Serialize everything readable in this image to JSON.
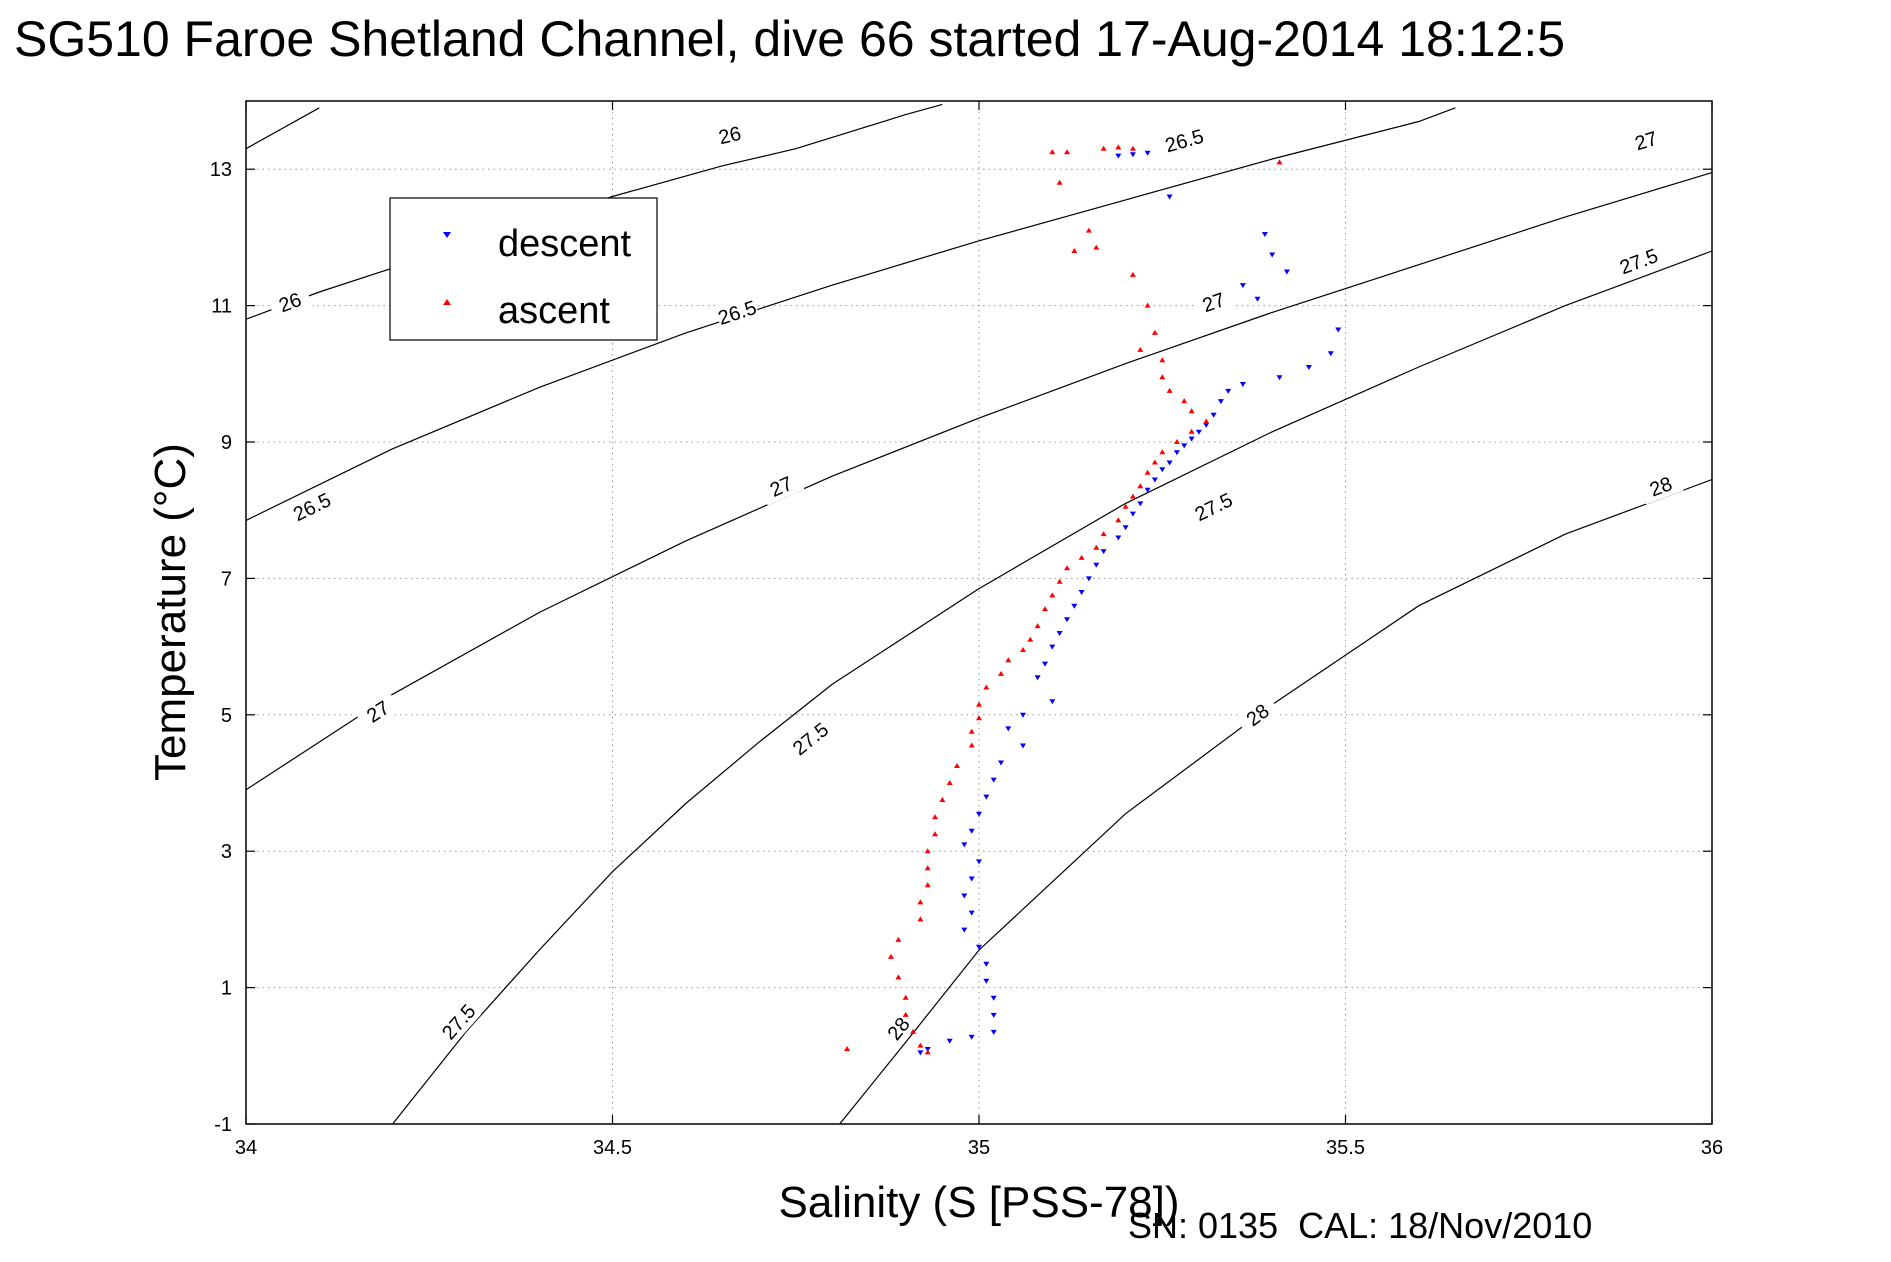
{
  "chart_data": {
    "type": "scatter",
    "title": "SG510 Faroe Shetland Channel, dive 66 started 17-Aug-2014 18:12:5",
    "xlabel": "Salinity (S [PSS-78])",
    "ylabel": "Temperature (°C)",
    "xlim": [
      34,
      36
    ],
    "ylim": [
      -1,
      14
    ],
    "xticks": [
      34,
      34.5,
      35,
      35.5,
      36
    ],
    "yticks": [
      -1,
      1,
      3,
      5,
      7,
      9,
      11,
      13
    ],
    "grid": true,
    "legend_position": "upper-left",
    "colors": {
      "descent": "#0000ff",
      "ascent": "#ff0000",
      "contour": "#000000"
    },
    "contours": [
      {
        "level": "26",
        "points": [
          [
            34,
            13.3
          ],
          [
            34.1,
            13.9
          ]
        ],
        "labels": []
      },
      {
        "level": "26",
        "points": [
          [
            34,
            10.8
          ],
          [
            34.1,
            11.2
          ],
          [
            34.3,
            11.9
          ],
          [
            34.5,
            12.6
          ],
          [
            34.65,
            13.05
          ],
          [
            34.75,
            13.3
          ],
          [
            34.9,
            13.8
          ],
          [
            34.95,
            13.95
          ]
        ],
        "labels": [
          [
            34.06,
            11.05
          ],
          [
            34.66,
            13.5
          ]
        ]
      },
      {
        "level": "26.5",
        "points": [
          [
            34,
            7.85
          ],
          [
            34.2,
            8.9
          ],
          [
            34.4,
            9.8
          ],
          [
            34.6,
            10.6
          ],
          [
            34.8,
            11.3
          ],
          [
            35,
            11.95
          ],
          [
            35.2,
            12.55
          ],
          [
            35.4,
            13.15
          ],
          [
            35.6,
            13.7
          ],
          [
            35.65,
            13.9
          ]
        ],
        "labels": [
          [
            34.09,
            8.05
          ],
          [
            34.67,
            10.9
          ],
          [
            35.28,
            13.42
          ]
        ]
      },
      {
        "level": "27",
        "points": [
          [
            34,
            3.9
          ],
          [
            34.2,
            5.3
          ],
          [
            34.4,
            6.5
          ],
          [
            34.6,
            7.55
          ],
          [
            34.8,
            8.5
          ],
          [
            35,
            9.35
          ],
          [
            35.2,
            10.15
          ],
          [
            35.4,
            10.9
          ],
          [
            35.6,
            11.6
          ],
          [
            35.8,
            12.3
          ],
          [
            36,
            12.95
          ]
        ],
        "labels": [
          [
            34.18,
            5.05
          ],
          [
            34.73,
            8.35
          ],
          [
            35.32,
            11.05
          ],
          [
            35.91,
            13.42
          ]
        ]
      },
      {
        "level": "27.5",
        "points": [
          [
            34.2,
            -1
          ],
          [
            34.3,
            0.35
          ],
          [
            34.4,
            1.55
          ],
          [
            34.5,
            2.7
          ],
          [
            34.6,
            3.7
          ],
          [
            34.7,
            4.6
          ],
          [
            34.8,
            5.45
          ],
          [
            35,
            6.85
          ],
          [
            35.2,
            8.1
          ],
          [
            35.4,
            9.15
          ],
          [
            35.6,
            10.1
          ],
          [
            35.8,
            11.0
          ],
          [
            36,
            11.8
          ]
        ],
        "labels": [
          [
            34.29,
            0.5
          ],
          [
            34.77,
            4.65
          ],
          [
            35.32,
            8.05
          ],
          [
            35.9,
            11.65
          ]
        ]
      },
      {
        "level": "28",
        "points": [
          [
            34.81,
            -1
          ],
          [
            34.9,
            0.2
          ],
          [
            35,
            1.55
          ],
          [
            35.2,
            3.55
          ],
          [
            35.4,
            5.15
          ],
          [
            35.6,
            6.6
          ],
          [
            35.8,
            7.65
          ],
          [
            36,
            8.45
          ]
        ],
        "labels": [
          [
            34.89,
            0.4
          ],
          [
            35.38,
            5.0
          ],
          [
            35.93,
            8.35
          ]
        ]
      }
    ],
    "series": [
      {
        "name": "descent",
        "marker": "triangle-down",
        "points": [
          [
            35.19,
            13.2
          ],
          [
            35.21,
            13.22
          ],
          [
            35.23,
            13.24
          ],
          [
            35.26,
            12.6
          ],
          [
            35.39,
            12.05
          ],
          [
            35.4,
            11.75
          ],
          [
            35.42,
            11.5
          ],
          [
            35.36,
            11.3
          ],
          [
            35.38,
            11.1
          ],
          [
            35.49,
            10.65
          ],
          [
            35.48,
            10.3
          ],
          [
            35.45,
            10.1
          ],
          [
            35.41,
            9.95
          ],
          [
            35.36,
            9.85
          ],
          [
            35.34,
            9.75
          ],
          [
            35.33,
            9.6
          ],
          [
            35.32,
            9.4
          ],
          [
            35.31,
            9.25
          ],
          [
            35.3,
            9.15
          ],
          [
            35.29,
            9.05
          ],
          [
            35.28,
            8.95
          ],
          [
            35.27,
            8.85
          ],
          [
            35.26,
            8.7
          ],
          [
            35.25,
            8.6
          ],
          [
            35.24,
            8.45
          ],
          [
            35.23,
            8.3
          ],
          [
            35.22,
            8.1
          ],
          [
            35.21,
            7.95
          ],
          [
            35.2,
            7.75
          ],
          [
            35.19,
            7.6
          ],
          [
            35.17,
            7.4
          ],
          [
            35.16,
            7.2
          ],
          [
            35.15,
            7.0
          ],
          [
            35.14,
            6.8
          ],
          [
            35.13,
            6.6
          ],
          [
            35.12,
            6.4
          ],
          [
            35.11,
            6.2
          ],
          [
            35.1,
            6.0
          ],
          [
            35.09,
            5.75
          ],
          [
            35.08,
            5.55
          ],
          [
            35.1,
            5.2
          ],
          [
            35.06,
            5.0
          ],
          [
            35.04,
            4.8
          ],
          [
            35.06,
            4.55
          ],
          [
            35.03,
            4.3
          ],
          [
            35.02,
            4.05
          ],
          [
            35.01,
            3.8
          ],
          [
            35.0,
            3.55
          ],
          [
            34.99,
            3.3
          ],
          [
            34.98,
            3.1
          ],
          [
            35.0,
            2.85
          ],
          [
            34.99,
            2.6
          ],
          [
            34.98,
            2.35
          ],
          [
            34.99,
            2.1
          ],
          [
            34.98,
            1.85
          ],
          [
            35.0,
            1.6
          ],
          [
            35.01,
            1.35
          ],
          [
            35.01,
            1.1
          ],
          [
            35.02,
            0.85
          ],
          [
            35.02,
            0.6
          ],
          [
            35.02,
            0.35
          ],
          [
            34.99,
            0.28
          ],
          [
            34.96,
            0.22
          ],
          [
            34.93,
            0.1
          ],
          [
            34.92,
            0.05
          ]
        ]
      },
      {
        "name": "ascent",
        "marker": "triangle-up",
        "points": [
          [
            35.17,
            13.3
          ],
          [
            35.19,
            13.32
          ],
          [
            35.21,
            13.3
          ],
          [
            35.12,
            13.25
          ],
          [
            35.1,
            13.25
          ],
          [
            35.41,
            13.1
          ],
          [
            35.11,
            12.8
          ],
          [
            35.15,
            12.1
          ],
          [
            35.16,
            11.85
          ],
          [
            35.13,
            11.8
          ],
          [
            35.21,
            11.45
          ],
          [
            35.23,
            11.0
          ],
          [
            35.24,
            10.6
          ],
          [
            35.22,
            10.35
          ],
          [
            35.25,
            10.2
          ],
          [
            35.25,
            9.95
          ],
          [
            35.26,
            9.75
          ],
          [
            35.28,
            9.6
          ],
          [
            35.29,
            9.45
          ],
          [
            35.31,
            9.3
          ],
          [
            35.29,
            9.15
          ],
          [
            35.27,
            9.0
          ],
          [
            35.25,
            8.85
          ],
          [
            35.24,
            8.7
          ],
          [
            35.23,
            8.55
          ],
          [
            35.22,
            8.35
          ],
          [
            35.21,
            8.2
          ],
          [
            35.2,
            8.05
          ],
          [
            35.19,
            7.85
          ],
          [
            35.17,
            7.65
          ],
          [
            35.16,
            7.45
          ],
          [
            35.14,
            7.3
          ],
          [
            35.12,
            7.15
          ],
          [
            35.11,
            6.95
          ],
          [
            35.1,
            6.75
          ],
          [
            35.09,
            6.55
          ],
          [
            35.08,
            6.3
          ],
          [
            35.07,
            6.1
          ],
          [
            35.06,
            5.95
          ],
          [
            35.04,
            5.8
          ],
          [
            35.03,
            5.6
          ],
          [
            35.01,
            5.4
          ],
          [
            35.0,
            5.15
          ],
          [
            35.0,
            4.95
          ],
          [
            34.99,
            4.75
          ],
          [
            34.99,
            4.55
          ],
          [
            34.97,
            4.25
          ],
          [
            34.96,
            4.0
          ],
          [
            34.95,
            3.75
          ],
          [
            34.94,
            3.5
          ],
          [
            34.94,
            3.25
          ],
          [
            34.93,
            3.0
          ],
          [
            34.93,
            2.75
          ],
          [
            34.93,
            2.5
          ],
          [
            34.92,
            2.25
          ],
          [
            34.92,
            2.0
          ],
          [
            34.89,
            1.7
          ],
          [
            34.88,
            1.45
          ],
          [
            34.89,
            1.15
          ],
          [
            34.9,
            0.85
          ],
          [
            34.9,
            0.6
          ],
          [
            34.91,
            0.35
          ],
          [
            34.92,
            0.15
          ],
          [
            34.93,
            0.05
          ],
          [
            34.82,
            0.1
          ]
        ]
      }
    ]
  }
}
